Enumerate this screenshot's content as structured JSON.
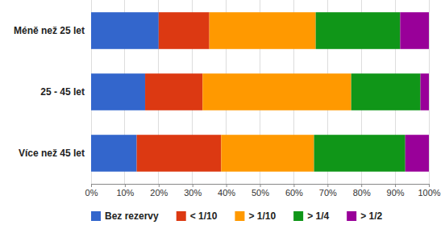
{
  "chart_data": {
    "type": "bar",
    "orientation": "horizontal",
    "stacked": true,
    "grid": true,
    "legend": "bottom",
    "categories": [
      "Méně než 25 let",
      "25 - 45 let",
      "Více než 45 let"
    ],
    "series": [
      {
        "name": "Bez rezervy",
        "color": "#3366cc",
        "values": [
          20,
          16,
          13.5
        ]
      },
      {
        "name": "< 1/10",
        "color": "#dc3912",
        "values": [
          15,
          17,
          25
        ]
      },
      {
        "name": "> 1/10",
        "color": "#ff9900",
        "values": [
          31.5,
          44,
          27.5
        ]
      },
      {
        "name": "> 1/4",
        "color": "#109618",
        "values": [
          25,
          20.5,
          27
        ]
      },
      {
        "name": "> 1/2",
        "color": "#990099",
        "values": [
          8.5,
          2.5,
          7
        ]
      }
    ],
    "xlim": [
      0,
      100
    ],
    "xticks": [
      {
        "value": 0,
        "label": "0%"
      },
      {
        "value": 10,
        "label": "10%"
      },
      {
        "value": 20,
        "label": "20%"
      },
      {
        "value": 30,
        "label": "30%"
      },
      {
        "value": 40,
        "label": "40%"
      },
      {
        "value": 50,
        "label": "50%"
      },
      {
        "value": 60,
        "label": "60%"
      },
      {
        "value": 70,
        "label": "70%"
      },
      {
        "value": 80,
        "label": "80%"
      },
      {
        "value": 90,
        "label": "90%"
      },
      {
        "value": 100,
        "label": "100%"
      }
    ]
  }
}
